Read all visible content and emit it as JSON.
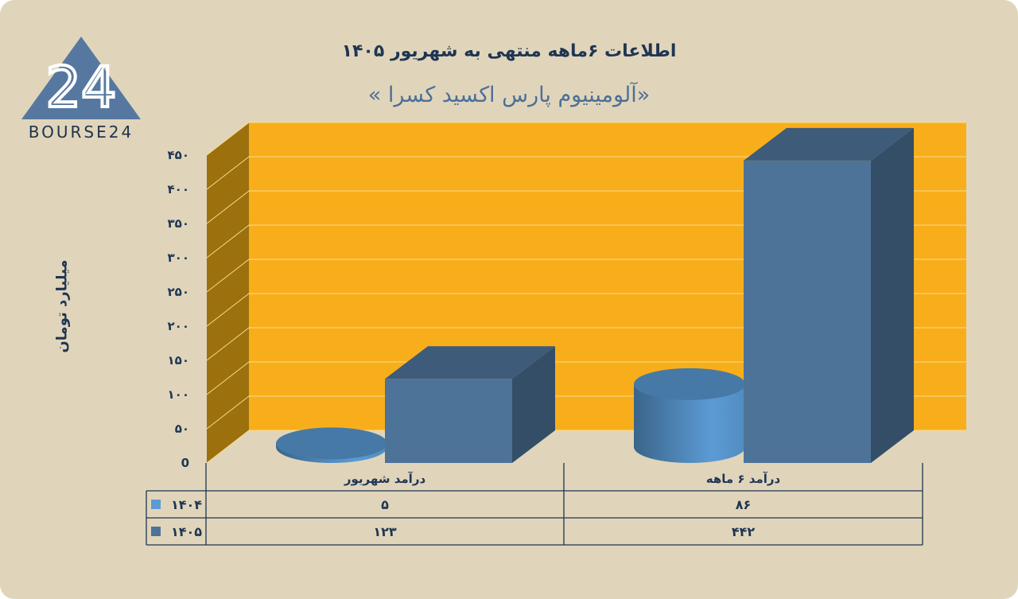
{
  "logo": {
    "text": "BOURSE24",
    "mark": "24"
  },
  "colors": {
    "background": "#e0d5bb",
    "plot": "#f8ae1b",
    "wall_side": "#9b700d",
    "series_1404": "#5b9bd5",
    "series_1405": "#4e7399",
    "text": "#1f3553"
  },
  "chart_data": {
    "type": "bar",
    "title": "اطلاعات ۶ماهه منتهی به شهریور ۱۴۰۵",
    "subtitle": "«آلومینیوم پارس اکسید کسرا »",
    "ylabel": "میلیارد تومان",
    "xlabel": "",
    "ylim": [
      0,
      450
    ],
    "y_ticks": [
      0,
      50,
      100,
      150,
      200,
      250,
      300,
      350,
      400,
      450
    ],
    "y_tick_labels": [
      "0",
      "۵۰",
      "۱۰۰",
      "۱۵۰",
      "۲۰۰",
      "۲۵۰",
      "۳۰۰",
      "۳۵۰",
      "۴۰۰",
      "۴۵۰"
    ],
    "categories": [
      "درآمد شهریور",
      "درآمد ۶ ماهه"
    ],
    "grid": true,
    "legend": "data-table",
    "series": [
      {
        "name": "۱۴۰۴",
        "shape": "cylinder",
        "color": "#5b9bd5",
        "values": [
          5,
          86
        ],
        "value_labels": [
          "۵",
          "۸۶"
        ]
      },
      {
        "name": "۱۴۰۵",
        "shape": "box",
        "color": "#4e7399",
        "values": [
          123,
          442
        ],
        "value_labels": [
          "۱۲۳",
          "۴۴۲"
        ]
      }
    ]
  }
}
